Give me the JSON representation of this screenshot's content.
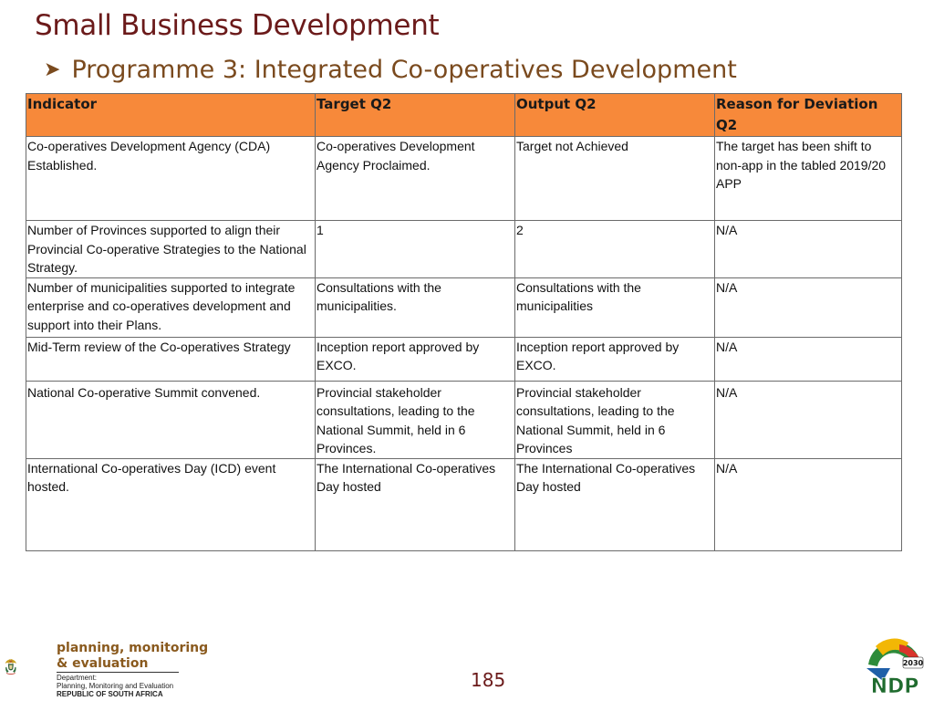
{
  "header": {
    "title": "Small Business Development",
    "subtitle": "Programme 3: Integrated Co-operatives Development"
  },
  "table": {
    "columns": [
      "Indicator",
      "Target Q2",
      "Output Q2",
      "Reason for Deviation Q2"
    ],
    "rows": [
      [
        "Co-operatives Development Agency (CDA) Established.",
        "Co-operatives Development Agency Proclaimed.",
        "Target not Achieved",
        "The target has been shift to non-app in the tabled 2019/20 APP"
      ],
      [
        "Number of Provinces supported to align their Provincial Co-operative Strategies to the National Strategy.",
        "1",
        "2",
        "N/A"
      ],
      [
        "Number of municipalities supported to integrate enterprise and co-operatives development and support into their Plans.",
        "Consultations with the municipalities.",
        " Consultations with the municipalities",
        "N/A"
      ],
      [
        "Mid-Term review of the Co-operatives Strategy",
        "Inception report approved by EXCO.",
        " Inception report approved by EXCO.",
        "N/A"
      ],
      [
        "National Co-operative Summit convened.",
        "Provincial stakeholder consultations, leading to the National Summit, held in 6 Provinces.",
        "Provincial stakeholder consultations, leading to the National Summit, held in 6 Provinces",
        "N/A"
      ],
      [
        "International Co-operatives Day (ICD) event hosted.",
        "The International Co-operatives Day hosted",
        "The International Co-operatives Day hosted",
        "N/A"
      ]
    ]
  },
  "footer": {
    "org_line1": "planning, monitoring",
    "org_line2": "& evaluation",
    "dept_line1": "Department:",
    "dept_line2": "Planning, Monitoring and Evaluation",
    "dept_line3": "REPUBLIC OF SOUTH AFRICA",
    "page_number": "185",
    "ndp_year": "2030",
    "ndp_text": "NDP"
  },
  "colors": {
    "title": "#6b1a1a",
    "subtitle": "#7a4a1e",
    "header_fill": "#f7893a"
  }
}
